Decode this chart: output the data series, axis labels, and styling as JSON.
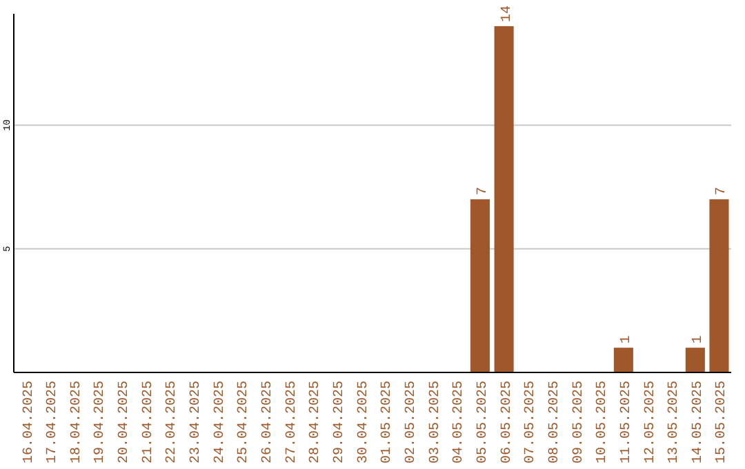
{
  "chart_data": {
    "type": "bar",
    "categories": [
      "16.04.2025",
      "17.04.2025",
      "18.04.2025",
      "19.04.2025",
      "20.04.2025",
      "21.04.2025",
      "22.04.2025",
      "23.04.2025",
      "24.04.2025",
      "25.04.2025",
      "26.04.2025",
      "27.04.2025",
      "28.04.2025",
      "29.04.2025",
      "30.04.2025",
      "01.05.2025",
      "02.05.2025",
      "03.05.2025",
      "04.05.2025",
      "05.05.2025",
      "06.05.2025",
      "07.05.2025",
      "08.05.2025",
      "09.05.2025",
      "10.05.2025",
      "11.05.2025",
      "12.05.2025",
      "13.05.2025",
      "14.05.2025",
      "15.05.2025"
    ],
    "values": [
      0,
      0,
      0,
      0,
      0,
      0,
      0,
      0,
      0,
      0,
      0,
      0,
      0,
      0,
      0,
      0,
      0,
      0,
      0,
      7,
      14,
      0,
      0,
      0,
      0,
      1,
      0,
      0,
      1,
      7
    ],
    "value_labels": [
      null,
      null,
      null,
      null,
      null,
      null,
      null,
      null,
      null,
      null,
      null,
      null,
      null,
      null,
      null,
      null,
      null,
      null,
      null,
      "7",
      "14",
      null,
      null,
      null,
      null,
      "1",
      null,
      null,
      "1",
      "7"
    ],
    "color": "#a0572a",
    "ylim": [
      0,
      14.5
    ],
    "yticks": [
      5,
      10
    ],
    "grid": "y"
  }
}
